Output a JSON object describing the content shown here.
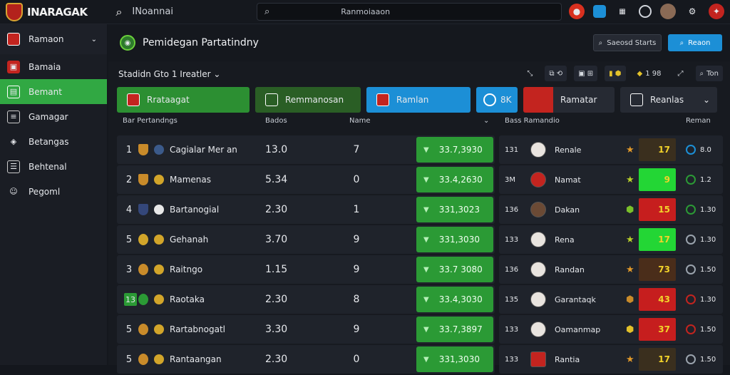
{
  "topbar": {
    "brand": "INARAGAK",
    "search_label": "INoannai",
    "search_value": "Ranmoiaaon",
    "icons": [
      "red-circle-icon",
      "blue-square-icon",
      "grid-icon",
      "gear-icon",
      "avatar",
      "settings-icon",
      "red-badge-icon"
    ]
  },
  "sidebar": {
    "items": [
      {
        "label": "Ramaon",
        "icon": "crest-icon"
      },
      {
        "label": "Bamaia",
        "icon": "shirt-icon"
      },
      {
        "label": "Bemant",
        "icon": "calendar-icon"
      },
      {
        "label": "Gamagar",
        "icon": "document-icon"
      },
      {
        "label": "Betangas",
        "icon": "shield-icon"
      },
      {
        "label": "Behtenal",
        "icon": "list-icon"
      },
      {
        "label": "Pegoml",
        "icon": "user-icon"
      }
    ]
  },
  "header": {
    "title": "Pemidegan Partatindny",
    "btn_secondary": "Saeosd Starts",
    "btn_primary": "Reaon"
  },
  "filter": {
    "label": "Stadidn Gto 1 Ireatler",
    "tools": [
      "",
      "",
      "",
      "1 98",
      "",
      "Ton"
    ]
  },
  "tabs": [
    {
      "label": "Rrataagat"
    },
    {
      "label": "Remmanosan"
    },
    {
      "label": "Ramlan"
    },
    {
      "label": "8K"
    },
    {
      "label": "Ramatar"
    },
    {
      "label": "Reanlas"
    }
  ],
  "columns": {
    "left_a": "Bar Pertandngs",
    "left_b": "Bados",
    "left_c": "Name",
    "right_a": "Bass Ramandio",
    "right_b": "Reman"
  },
  "rows": [
    {
      "rank": "1",
      "team": "Cagialar Mer an",
      "v1": "13.0",
      "v2": "7",
      "amount": "33.7,3930",
      "rnum": "131",
      "player": "Renale",
      "score": "17",
      "snum": "8.0"
    },
    {
      "rank": "2",
      "team": "Mamenas",
      "v1": "5.34",
      "v2": "0",
      "amount": "33.4,2630",
      "rnum": "3M",
      "player": "Namat",
      "score": "9",
      "snum": "1.2"
    },
    {
      "rank": "4",
      "team": "Bartanogial",
      "v1": "2.30",
      "v2": "1",
      "amount": "331,3023",
      "rnum": "136",
      "player": "Dakan",
      "score": "15",
      "snum": "1.30"
    },
    {
      "rank": "5",
      "team": "Gehanah",
      "v1": "3.70",
      "v2": "9",
      "amount": "331,3030",
      "rnum": "133",
      "player": "Rena",
      "score": "17",
      "snum": "1.30"
    },
    {
      "rank": "3",
      "team": "Raitngo",
      "v1": "1.15",
      "v2": "9",
      "amount": "33.7 3080",
      "rnum": "136",
      "player": "Randan",
      "score": "73",
      "snum": "1.50"
    },
    {
      "rank": "13",
      "team": "Raotaka",
      "v1": "2.30",
      "v2": "8",
      "amount": "33.4,3030",
      "rnum": "135",
      "player": "Garantaqk",
      "score": "43",
      "snum": "1.30"
    },
    {
      "rank": "5",
      "team": "Rartabnogatl",
      "v1": "3.30",
      "v2": "9",
      "amount": "33.7,3897",
      "rnum": "133",
      "player": "Oamanmap",
      "score": "37",
      "snum": "1.50"
    },
    {
      "rank": "5",
      "team": "Rantaangan",
      "v1": "2.30",
      "v2": "0",
      "amount": "331,3030",
      "rnum": "133",
      "player": "Rantia",
      "score": "17",
      "snum": "1.50"
    }
  ],
  "colors": {
    "accent_green": "#2b9a35",
    "accent_blue": "#1c8fd6",
    "accent_red": "#c3241f",
    "bar_green": "#23d635",
    "bar_red": "#c61e1e",
    "bar_dark": "#4a2d1a"
  }
}
